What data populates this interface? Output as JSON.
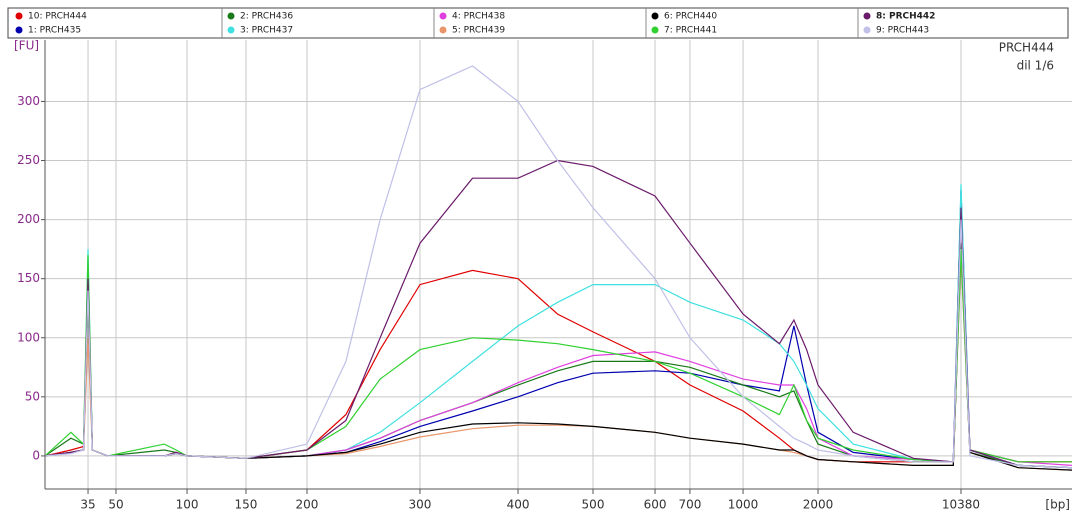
{
  "chart_data": {
    "type": "line",
    "y_label": "[FU]",
    "x_label": "[bp]",
    "annotations": [
      "PRCH444",
      "dil 1/6"
    ],
    "x": [
      20,
      28,
      33,
      35,
      37,
      45,
      80,
      90,
      100,
      150,
      200,
      230,
      260,
      300,
      350,
      400,
      450,
      500,
      600,
      700,
      1000,
      1400,
      1600,
      1800,
      2000,
      3000,
      6000,
      9500,
      10380,
      11500,
      20000,
      37000
    ],
    "xlim": [
      20,
      37000
    ],
    "xticks": [
      35,
      50,
      100,
      150,
      200,
      300,
      400,
      500,
      600,
      700,
      1000,
      2000,
      10380
    ],
    "ylim": [
      -28,
      352
    ],
    "yticks": [
      0,
      50,
      100,
      150,
      200,
      250,
      300
    ],
    "grid": true,
    "series": [
      {
        "name": "10: PRCH444",
        "color": "#e00000",
        "values": [
          0,
          5,
          8,
          140,
          5,
          0,
          0,
          3,
          0,
          -2,
          5,
          35,
          90,
          145,
          157,
          150,
          120,
          105,
          80,
          60,
          38,
          15,
          5,
          0,
          -3,
          -5,
          -5,
          -5,
          190,
          5,
          -5,
          -5
        ]
      },
      {
        "name": "1: PRCH435",
        "color": "#0000b0",
        "values": [
          0,
          3,
          5,
          140,
          5,
          0,
          0,
          2,
          0,
          -2,
          0,
          3,
          12,
          25,
          38,
          50,
          62,
          70,
          72,
          70,
          60,
          55,
          110,
          60,
          20,
          3,
          -3,
          -5,
          225,
          5,
          -8,
          -10
        ]
      },
      {
        "name": "2: PRCH436",
        "color": "#1a7a1a",
        "values": [
          0,
          15,
          10,
          130,
          5,
          0,
          5,
          3,
          0,
          -2,
          0,
          5,
          15,
          30,
          45,
          60,
          72,
          80,
          80,
          75,
          60,
          50,
          55,
          30,
          10,
          0,
          -5,
          -5,
          170,
          3,
          -8,
          -10
        ]
      },
      {
        "name": "3: PRCH437",
        "color": "#40e0e0",
        "values": [
          0,
          3,
          5,
          175,
          5,
          0,
          0,
          2,
          0,
          -2,
          0,
          5,
          20,
          45,
          80,
          110,
          130,
          145,
          145,
          130,
          115,
          95,
          80,
          60,
          40,
          10,
          -3,
          -5,
          230,
          5,
          -8,
          -10
        ]
      },
      {
        "name": "4: PRCH438",
        "color": "#e040e0",
        "values": [
          0,
          3,
          5,
          150,
          5,
          0,
          0,
          2,
          0,
          -2,
          0,
          5,
          15,
          30,
          45,
          62,
          75,
          85,
          88,
          80,
          65,
          60,
          60,
          40,
          15,
          0,
          -3,
          -5,
          200,
          5,
          -5,
          -8
        ]
      },
      {
        "name": "5: PRCH439",
        "color": "#e8956a",
        "values": [
          0,
          3,
          5,
          100,
          5,
          0,
          0,
          2,
          0,
          -2,
          0,
          2,
          8,
          16,
          23,
          26,
          26,
          25,
          20,
          15,
          10,
          5,
          3,
          0,
          -3,
          -5,
          -8,
          -8,
          170,
          3,
          -10,
          -12
        ]
      },
      {
        "name": "6: PRCH440",
        "color": "#000000",
        "values": [
          0,
          3,
          5,
          150,
          5,
          0,
          0,
          2,
          0,
          -2,
          0,
          3,
          10,
          20,
          27,
          28,
          27,
          25,
          20,
          15,
          10,
          5,
          5,
          0,
          -3,
          -5,
          -8,
          -8,
          180,
          3,
          -10,
          -12
        ]
      },
      {
        "name": "7: PRCH441",
        "color": "#30d030",
        "values": [
          0,
          20,
          10,
          170,
          5,
          0,
          10,
          5,
          0,
          -2,
          5,
          25,
          65,
          90,
          100,
          98,
          95,
          90,
          80,
          70,
          50,
          35,
          60,
          30,
          15,
          5,
          -3,
          -5,
          175,
          5,
          -5,
          -5
        ]
      },
      {
        "name": "8: PRCH442",
        "color": "#6a1a6a",
        "highlighted": true,
        "values": [
          0,
          3,
          5,
          150,
          5,
          0,
          0,
          3,
          0,
          -2,
          5,
          30,
          100,
          180,
          235,
          235,
          250,
          245,
          220,
          180,
          120,
          95,
          115,
          90,
          60,
          20,
          -2,
          -5,
          210,
          5,
          -8,
          -10
        ]
      },
      {
        "name": "9: PRCH443",
        "color": "#c0c0e8",
        "values": [
          0,
          2,
          5,
          140,
          5,
          0,
          0,
          2,
          0,
          -2,
          10,
          80,
          200,
          310,
          330,
          300,
          250,
          210,
          150,
          100,
          50,
          25,
          15,
          10,
          5,
          0,
          -5,
          -5,
          200,
          0,
          -8,
          -10
        ]
      }
    ]
  }
}
